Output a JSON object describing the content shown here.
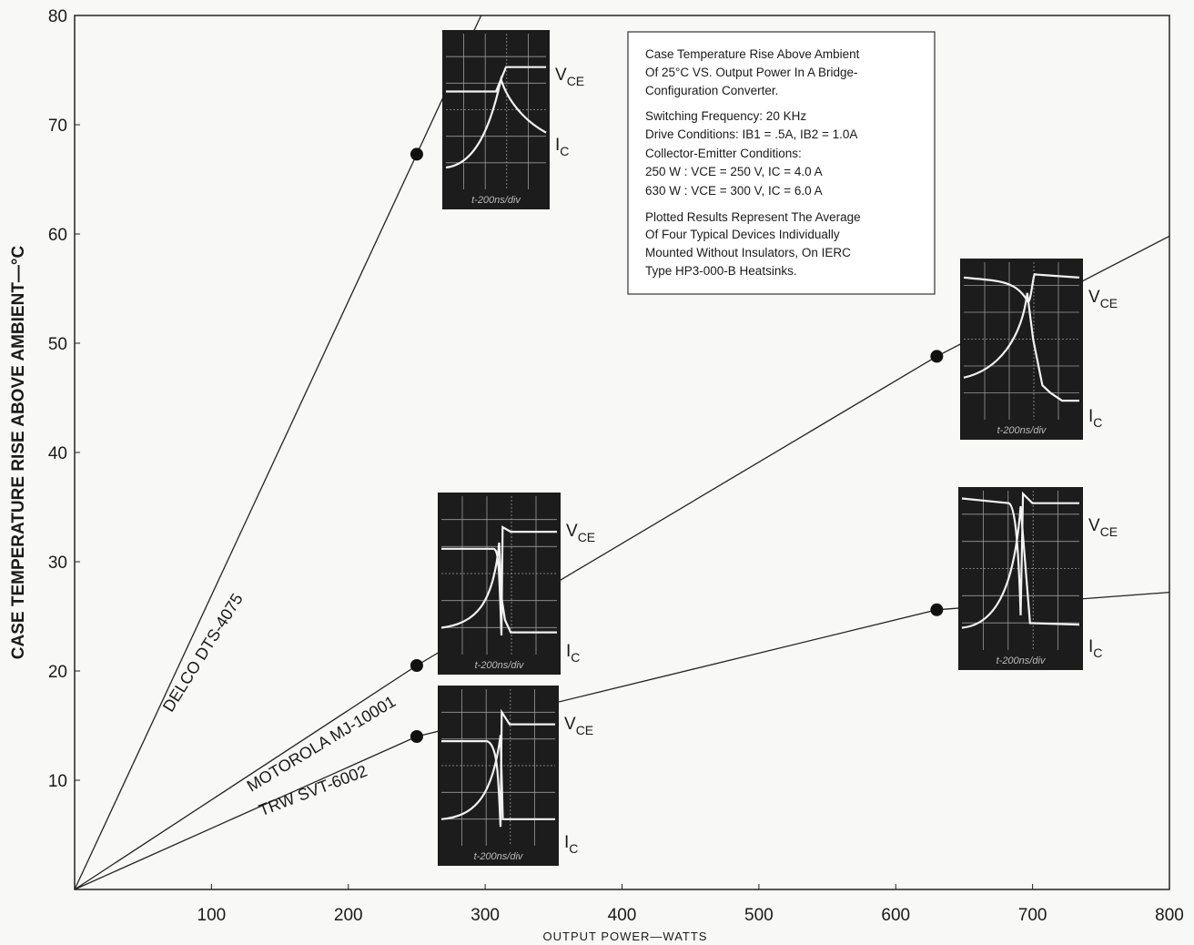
{
  "chart_data": {
    "type": "line",
    "x_label": "OUTPUT POWER—WATTS",
    "y_label": "CASE TEMPERATURE RISE ABOVE AMBIENT—°C",
    "xlim": [
      0,
      800
    ],
    "ylim": [
      0,
      80
    ],
    "xticks": [
      100,
      200,
      300,
      400,
      500,
      600,
      700,
      800
    ],
    "yticks": [
      10,
      20,
      30,
      40,
      50,
      60,
      70,
      80
    ],
    "color": "#222222",
    "series": [
      {
        "name": "DELCO DTS-4075",
        "x": [
          0,
          250,
          297
        ],
        "values": [
          0,
          67.3,
          80
        ]
      },
      {
        "name": "MOTOROLA MJ-10001",
        "x": [
          0,
          250,
          630,
          800
        ],
        "values": [
          0,
          20.5,
          48.8,
          59.8
        ]
      },
      {
        "name": "TRW SVT-6002",
        "x": [
          0,
          250,
          630,
          800
        ],
        "values": [
          0,
          14,
          25.6,
          27.2
        ]
      }
    ],
    "insets": [
      {
        "vce": "V",
        "vce_sub": "CE",
        "ic": "I",
        "ic_sub": "C",
        "timebase": "t-200ns/div"
      },
      {
        "vce": "V",
        "vce_sub": "CE",
        "ic": "I",
        "ic_sub": "C",
        "timebase": "t-200ns/div"
      },
      {
        "vce": "V",
        "vce_sub": "CE",
        "ic": "I",
        "ic_sub": "C",
        "timebase": "t-200ns/div"
      },
      {
        "vce": "V",
        "vce_sub": "CE",
        "ic": "I",
        "ic_sub": "C",
        "timebase": "t-200ns/div"
      },
      {
        "vce": "V",
        "vce_sub": "CE",
        "ic": "I",
        "ic_sub": "C",
        "timebase": "t-200ns/div"
      }
    ],
    "note": [
      "Case Temperature Rise Above Ambient",
      "Of 25°C VS. Output Power In A Bridge-",
      "Configuration Converter.",
      "Switching Frequency: 20 KHz",
      "Drive Conditions: IB1 = .5A, IB2 = 1.0A",
      "Collector-Emitter Conditions:",
      "250 W : VCE = 250 V, IC = 4.0 A",
      "630 W : VCE = 300 V, IC = 6.0 A",
      "Plotted Results Represent The Average",
      "Of Four Typical Devices Individually",
      "Mounted Without Insulators, On IERC",
      "Type HP3-000-B Heatsinks."
    ]
  }
}
